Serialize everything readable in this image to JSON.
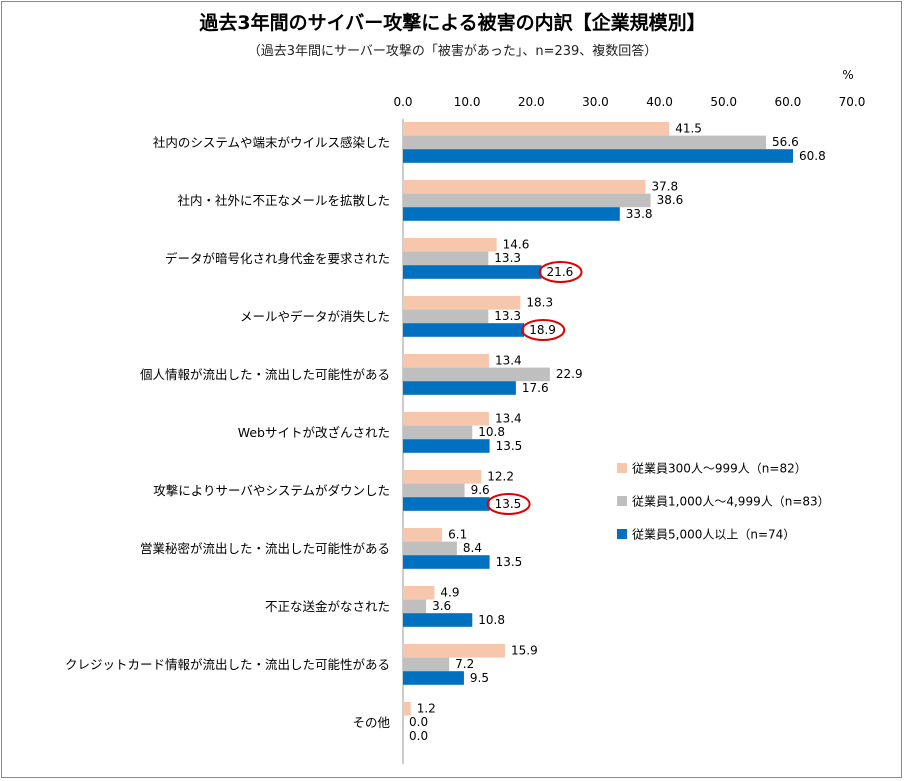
{
  "chart_data": {
    "type": "bar",
    "orientation": "horizontal",
    "title": "過去3年間のサイバー攻撃による被害の内訳【企業規模別】",
    "subtitle": "（過去3年間にサーバー攻撃の「被害があった」、n=239、複数回答）",
    "unit": "%",
    "xlim": [
      0,
      70
    ],
    "ticks": [
      "0.0",
      "10.0",
      "20.0",
      "30.0",
      "40.0",
      "50.0",
      "60.0",
      "70.0"
    ],
    "tick_values": [
      0,
      10,
      20,
      30,
      40,
      50,
      60,
      70
    ],
    "grid": false,
    "legend_position": "right",
    "categories": [
      "社内のシステムや端末がウイルス感染した",
      "社内・社外に不正なメールを拡散した",
      "データが暗号化され身代金を要求された",
      "メールやデータが消失した",
      "個人情報が流出した・流出した可能性がある",
      "Webサイトが改ざんされた",
      "攻撃によりサーバやシステムがダウンした",
      "営業秘密が流出した・流出した可能性がある",
      "不正な送金がなされた",
      "クレジットカード情報が流出した・流出した可能性がある",
      "その他"
    ],
    "series": [
      {
        "name": "従業員300人～999人（n=82）",
        "color": "#f6c7ac",
        "values": [
          41.5,
          37.8,
          14.6,
          18.3,
          13.4,
          13.4,
          12.2,
          6.1,
          4.9,
          15.9,
          1.2
        ],
        "labels": [
          "41.5",
          "37.8",
          "14.6",
          "18.3",
          "13.4",
          "13.4",
          "12.2",
          "6.1",
          "4.9",
          "15.9",
          "1.2"
        ]
      },
      {
        "name": "従業員1,000人～4,999人（n=83）",
        "color": "#bfbfbf",
        "values": [
          56.6,
          38.6,
          13.3,
          13.3,
          22.9,
          10.8,
          9.6,
          8.4,
          3.6,
          7.2,
          0.0
        ],
        "labels": [
          "56.6",
          "38.6",
          "13.3",
          "13.3",
          "22.9",
          "10.8",
          "9.6",
          "8.4",
          "3.6",
          "7.2",
          "0.0"
        ]
      },
      {
        "name": "従業員5,000人以上（n=74）",
        "color": "#0070c0",
        "values": [
          60.8,
          33.8,
          21.6,
          18.9,
          17.6,
          13.5,
          13.5,
          13.5,
          10.8,
          9.5,
          0.0
        ],
        "labels": [
          "60.8",
          "33.8",
          "21.6",
          "18.9",
          "17.6",
          "13.5",
          "13.5",
          "13.5",
          "10.8",
          "9.5",
          "0.0"
        ]
      }
    ],
    "highlighted": [
      {
        "series": 2,
        "category": 2
      },
      {
        "series": 2,
        "category": 3
      },
      {
        "series": 2,
        "category": 6
      }
    ],
    "highlight_color": "#e00000"
  }
}
